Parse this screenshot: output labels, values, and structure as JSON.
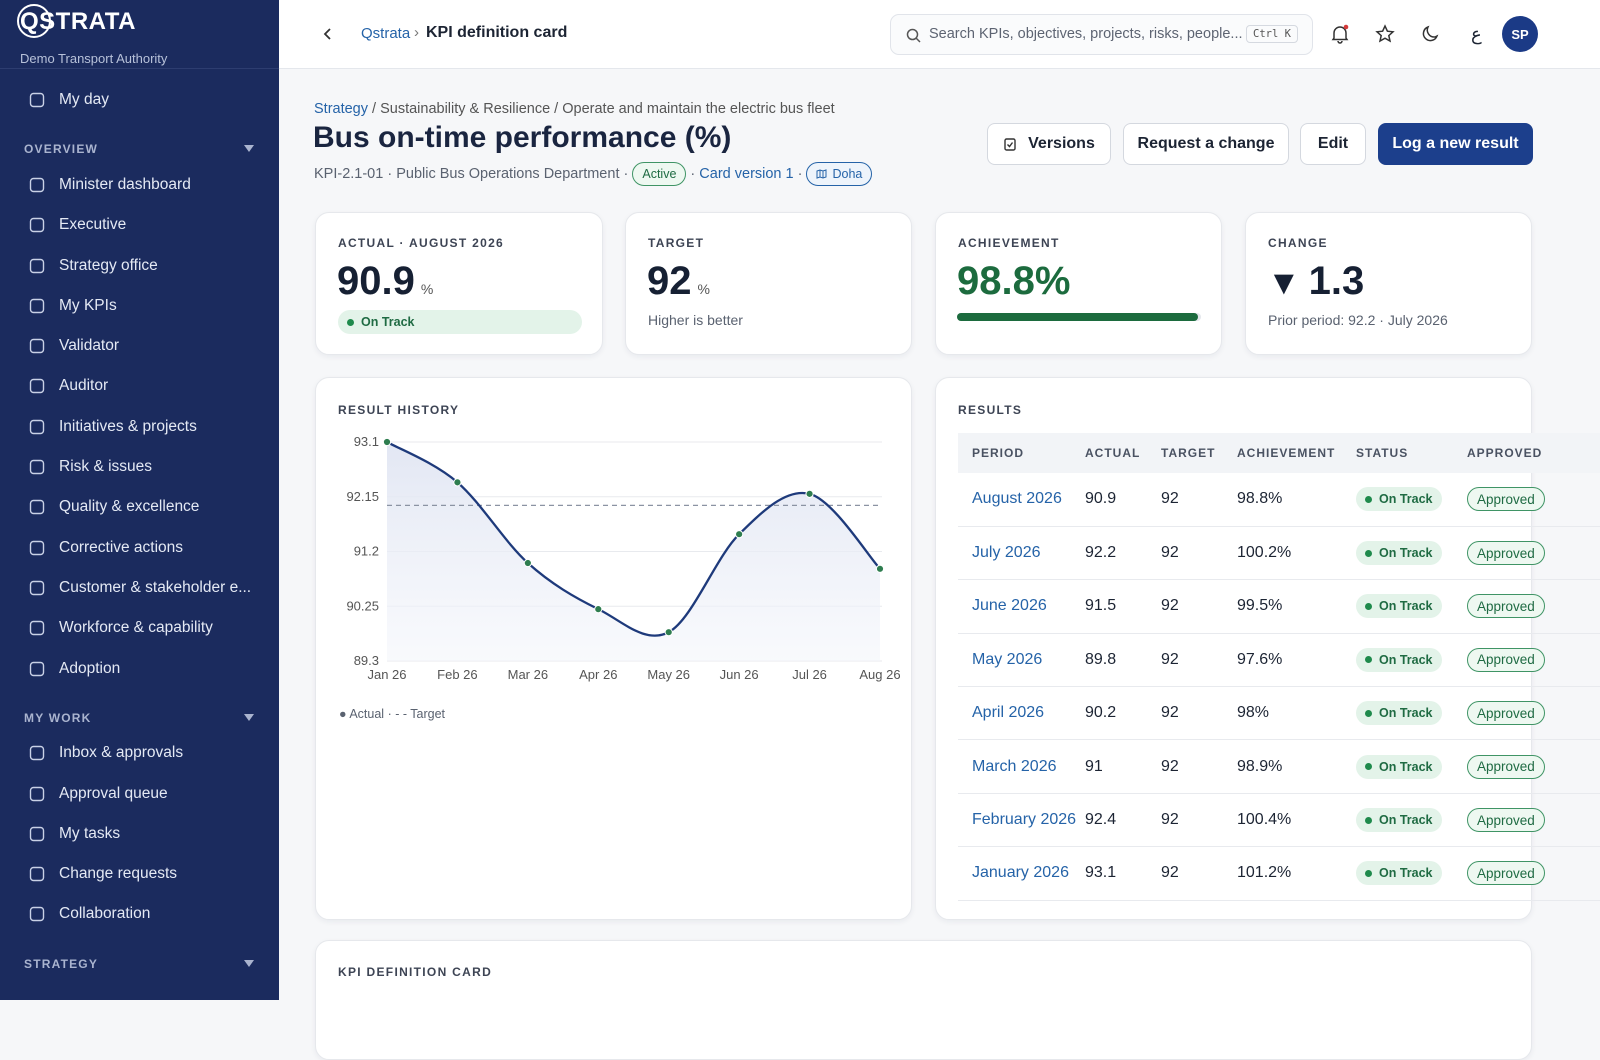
{
  "sidebar": {
    "brand": "QSTRATA",
    "org": "Demo Transport Authority",
    "top_items": [
      "My day"
    ],
    "sections": [
      {
        "title": "OVERVIEW",
        "items": [
          "Minister dashboard",
          "Executive",
          "Strategy office",
          "My KPIs",
          "Validator",
          "Auditor",
          "Initiatives & projects",
          "Risk & issues",
          "Quality & excellence",
          "Corrective actions",
          "Customer & stakeholder e...",
          "Workforce & capability",
          "Adoption"
        ]
      },
      {
        "title": "MY WORK",
        "items": [
          "Inbox & approvals",
          "Approval queue",
          "My tasks",
          "Change requests",
          "Collaboration"
        ]
      },
      {
        "title": "STRATEGY"
      }
    ]
  },
  "topbar": {
    "breadcrumb": [
      "Qstrata",
      "KPI definition card"
    ],
    "search_placeholder": "Search KPIs, objectives, projects, risks, people...",
    "shortcut": "Ctrl K",
    "language": "ع",
    "avatar": "SP"
  },
  "header": {
    "breadcrumb": [
      "Strategy",
      "Sustainability & Resilience",
      "Operate and maintain the electric bus fleet"
    ],
    "title": "Bus on-time performance (%)",
    "code": "KPI-2.1-01",
    "department": "Public Bus Operations Department",
    "status": "Active",
    "version": "Card version 1",
    "location": "Doha",
    "buttons": [
      "Versions",
      "Request a change",
      "Edit",
      "Log a new result"
    ]
  },
  "cards": {
    "actual": {
      "label": "ACTUAL · AUGUST 2026",
      "value": 90.9,
      "unit": "%",
      "status": "On Track"
    },
    "target": {
      "label": "TARGET",
      "value": 92,
      "unit": "%",
      "note": "Higher is better"
    },
    "achievement": {
      "label": "ACHIEVEMENT",
      "value": 98.8,
      "value_label": "98.8%"
    },
    "change": {
      "label": "CHANGE",
      "symbol": "▼",
      "value": 1.3,
      "note": "Prior period: 92.2 · July 2026"
    }
  },
  "chart_data": {
    "type": "line",
    "title": "RESULT HISTORY",
    "categories": [
      "Jan 26",
      "Feb 26",
      "Mar 26",
      "Apr 26",
      "May 26",
      "Jun 26",
      "Jul 26",
      "Aug 26"
    ],
    "series": [
      {
        "name": "Actual",
        "color": "#1e3a7b",
        "marker_color": "#2e7d4f",
        "values": [
          93.1,
          92.4,
          91,
          90.2,
          89.8,
          91.5,
          92.2,
          90.9
        ]
      }
    ],
    "reference_lines": [
      {
        "name": "Target",
        "value": 92
      }
    ],
    "ylim": [
      89.3,
      93.1
    ],
    "yticks": [
      93.1,
      92.15,
      91.2,
      90.25,
      89.3
    ],
    "grid": true
  },
  "results": {
    "title": "RESULTS",
    "columns": [
      "PERIOD",
      "ACTUAL",
      "TARGET",
      "ACHIEVEMENT",
      "STATUS",
      "APPROVED"
    ],
    "rows": [
      [
        "August 2026",
        90.9,
        92,
        "98.8%",
        "On Track",
        "Approved"
      ],
      [
        "July 2026",
        92.2,
        92,
        "100.2%",
        "On Track",
        "Approved"
      ],
      [
        "June 2026",
        91.5,
        92,
        "99.5%",
        "On Track",
        "Approved"
      ],
      [
        "May 2026",
        89.8,
        92,
        "97.6%",
        "On Track",
        "Approved"
      ],
      [
        "April 2026",
        90.2,
        92,
        "98%",
        "On Track",
        "Approved"
      ],
      [
        "March 2026",
        91,
        92,
        "98.9%",
        "On Track",
        "Approved"
      ],
      [
        "February 2026",
        92.4,
        92,
        "100.4%",
        "On Track",
        "Approved"
      ],
      [
        "January 2026",
        93.1,
        92,
        "101.2%",
        "On Track",
        "Approved"
      ]
    ]
  },
  "definition_card": {
    "title": "KPI DEFINITION CARD"
  }
}
